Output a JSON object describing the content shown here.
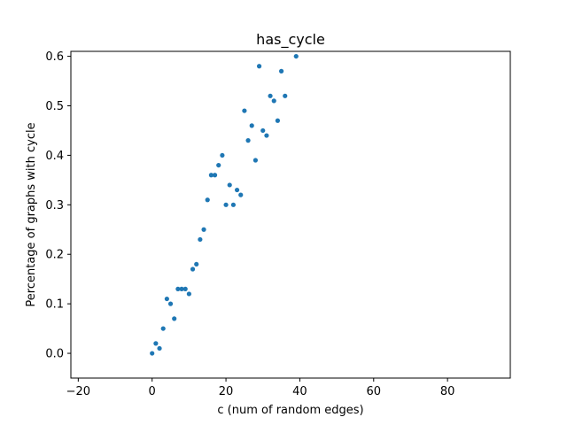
{
  "chart_data": {
    "type": "scatter",
    "title": "has_cycle",
    "xlabel": "c (num of random edges)",
    "ylabel": "Percentage of graphs with cycle",
    "xlim": [
      -22,
      97
    ],
    "ylim": [
      -0.05,
      0.61
    ],
    "xticks": [
      -20,
      0,
      20,
      40,
      60,
      80
    ],
    "yticks": [
      0.0,
      0.1,
      0.2,
      0.3,
      0.4,
      0.5,
      0.6
    ],
    "xtick_labels": [
      "−20",
      "0",
      "20",
      "40",
      "60",
      "80"
    ],
    "ytick_labels": [
      "0.0",
      "0.1",
      "0.2",
      "0.3",
      "0.4",
      "0.5",
      "0.6"
    ],
    "grid": false,
    "marker_color": "#1f77b4",
    "series": [
      {
        "points": [
          [
            0,
            0.0
          ],
          [
            1,
            0.02
          ],
          [
            2,
            0.01
          ],
          [
            3,
            0.05
          ],
          [
            4,
            0.11
          ],
          [
            5,
            0.1
          ],
          [
            6,
            0.07
          ],
          [
            7,
            0.13
          ],
          [
            8,
            0.13
          ],
          [
            9,
            0.13
          ],
          [
            10,
            0.12
          ],
          [
            11,
            0.17
          ],
          [
            12,
            0.18
          ],
          [
            13,
            0.23
          ],
          [
            14,
            0.25
          ],
          [
            15,
            0.31
          ],
          [
            16,
            0.36
          ],
          [
            17,
            0.36
          ],
          [
            18,
            0.38
          ],
          [
            19,
            0.4
          ],
          [
            20,
            0.3
          ],
          [
            21,
            0.34
          ],
          [
            22,
            0.3
          ],
          [
            23,
            0.33
          ],
          [
            24,
            0.32
          ],
          [
            25,
            0.49
          ],
          [
            26,
            0.43
          ],
          [
            27,
            0.46
          ],
          [
            28,
            0.39
          ],
          [
            29,
            0.58
          ],
          [
            30,
            0.45
          ],
          [
            31,
            0.44
          ],
          [
            32,
            0.52
          ],
          [
            33,
            0.51
          ],
          [
            34,
            0.47
          ],
          [
            35,
            0.57
          ],
          [
            36,
            0.52
          ],
          [
            39,
            0.6
          ]
        ]
      }
    ]
  }
}
